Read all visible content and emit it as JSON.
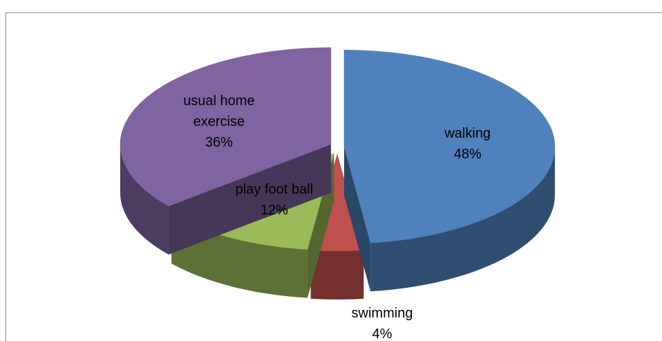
{
  "chart_data": {
    "type": "pie",
    "categories": [
      "walking",
      "swimming",
      "play foot ball",
      "usual home exercise"
    ],
    "values": [
      48,
      4,
      12,
      36
    ],
    "value_labels": [
      "48%",
      "4%",
      "12%",
      "36%"
    ],
    "colors": [
      "#4f81bd",
      "#c0504d",
      "#9bbb59",
      "#8064a2"
    ]
  }
}
